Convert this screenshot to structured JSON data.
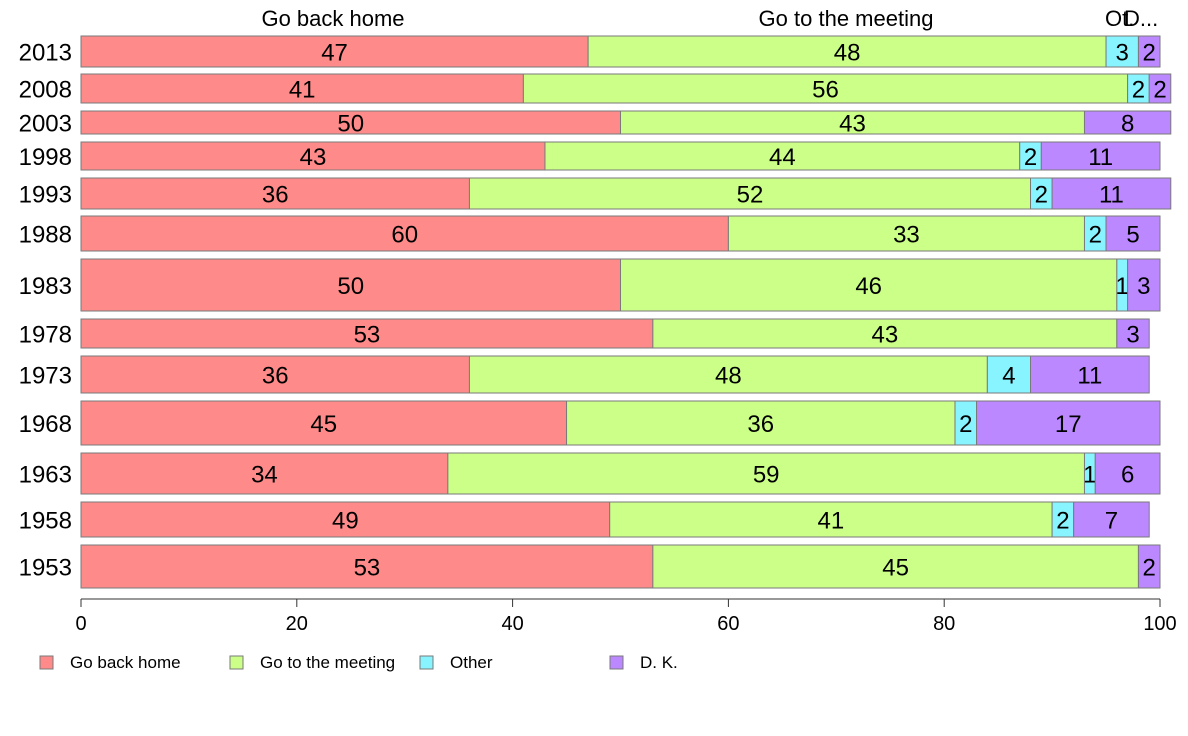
{
  "chart_data": {
    "type": "bar",
    "orientation": "horizontal",
    "stacked": true,
    "title": "",
    "xlabel": "",
    "ylabel": "",
    "xlim": [
      0,
      100
    ],
    "x_ticks": [
      "0",
      "20",
      "40",
      "60",
      "80",
      "100"
    ],
    "column_headers": [
      "Go back home",
      "Go to the meeting",
      "Ot.",
      "D..."
    ],
    "categories": [
      "2013",
      "2008",
      "2003",
      "1998",
      "1993",
      "1988",
      "1983",
      "1978",
      "1973",
      "1968",
      "1963",
      "1958",
      "1953"
    ],
    "series": [
      {
        "name": "Go back home",
        "color": "#ff8a8a",
        "values": [
          47,
          41,
          50,
          43,
          36,
          60,
          50,
          53,
          36,
          45,
          34,
          49,
          53
        ]
      },
      {
        "name": "Go to the meeting",
        "color": "#ccff88",
        "values": [
          48,
          56,
          43,
          44,
          52,
          33,
          46,
          43,
          48,
          36,
          59,
          41,
          45
        ]
      },
      {
        "name": "Other",
        "color": "#88f4ff",
        "values": [
          3,
          2,
          0,
          2,
          2,
          2,
          1,
          0,
          4,
          2,
          1,
          2,
          0
        ]
      },
      {
        "name": "D. K.",
        "color": "#bb88ff",
        "values": [
          2,
          2,
          8,
          11,
          11,
          5,
          3,
          3,
          11,
          17,
          6,
          7,
          2
        ]
      }
    ],
    "legend_position": "bottom-left",
    "grid": false
  }
}
